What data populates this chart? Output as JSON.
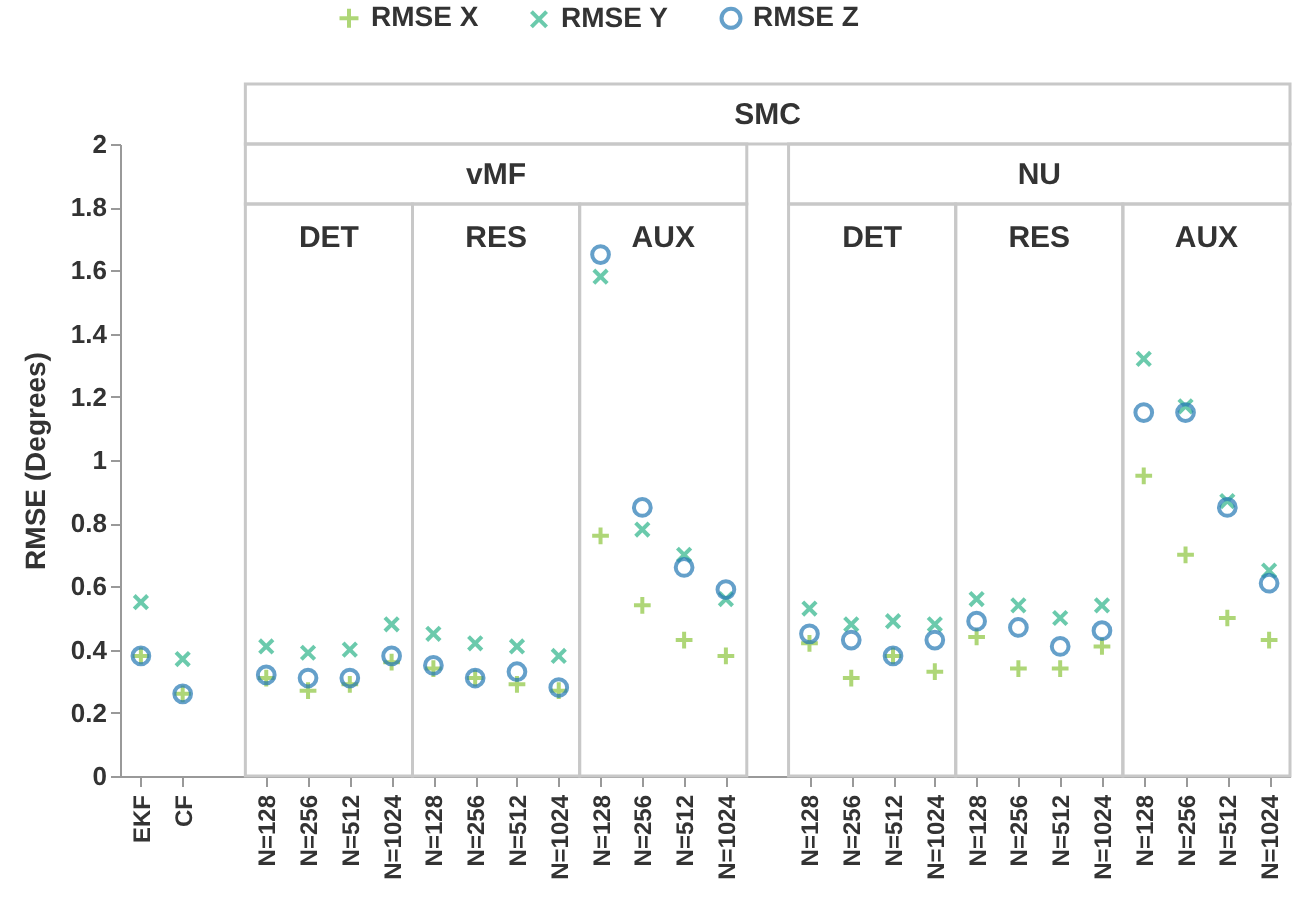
{
  "chart_data": {
    "type": "scatter",
    "ylabel": "RMSE (Degrees)",
    "ylim": [
      0,
      2
    ],
    "yticks": [
      0,
      0.2,
      0.4,
      0.6,
      0.8,
      1,
      1.2,
      1.4,
      1.6,
      1.8,
      2
    ],
    "grid": false,
    "legend": "top",
    "annotations": [
      "SMC",
      "vMF",
      "NU",
      "DET",
      "RES",
      "AUX",
      "DET",
      "RES",
      "AUX"
    ],
    "categories": [
      "EKF",
      "CF",
      null,
      "N=128",
      "N=256",
      "N=512",
      "N=1024",
      "N=128",
      "N=256",
      "N=512",
      "N=1024",
      "N=128",
      "N=256",
      "N=512",
      "N=1024",
      null,
      "N=128",
      "N=256",
      "N=512",
      "N=1024",
      "N=128",
      "N=256",
      "N=512",
      "N=1024",
      "N=128",
      "N=256",
      "N=512",
      "N=1024"
    ],
    "series": [
      {
        "name": "RMSE X",
        "color": "#8cc63e",
        "marker": "plus",
        "values": [
          0.38,
          0.26,
          null,
          0.31,
          0.27,
          0.29,
          0.36,
          0.34,
          0.31,
          0.29,
          0.27,
          0.76,
          0.54,
          0.43,
          0.38,
          null,
          0.42,
          0.31,
          0.38,
          0.33,
          0.44,
          0.34,
          0.34,
          0.41,
          0.95,
          0.7,
          0.5,
          0.43
        ]
      },
      {
        "name": "RMSE Y",
        "color": "#2db48a",
        "marker": "cross",
        "values": [
          0.55,
          0.37,
          null,
          0.41,
          0.39,
          0.4,
          0.48,
          0.45,
          0.42,
          0.41,
          0.38,
          1.58,
          0.78,
          0.7,
          0.56,
          null,
          0.53,
          0.48,
          0.49,
          0.48,
          0.56,
          0.54,
          0.5,
          0.54,
          1.32,
          1.17,
          0.87,
          0.65
        ]
      },
      {
        "name": "RMSE Z",
        "color": "#2479b5",
        "marker": "circle",
        "values": [
          0.38,
          0.26,
          null,
          0.32,
          0.31,
          0.31,
          0.38,
          0.35,
          0.31,
          0.33,
          0.28,
          1.65,
          0.85,
          0.66,
          0.59,
          null,
          0.45,
          0.43,
          0.38,
          0.43,
          0.49,
          0.47,
          0.41,
          0.46,
          1.15,
          1.15,
          0.85,
          0.61
        ]
      }
    ]
  }
}
